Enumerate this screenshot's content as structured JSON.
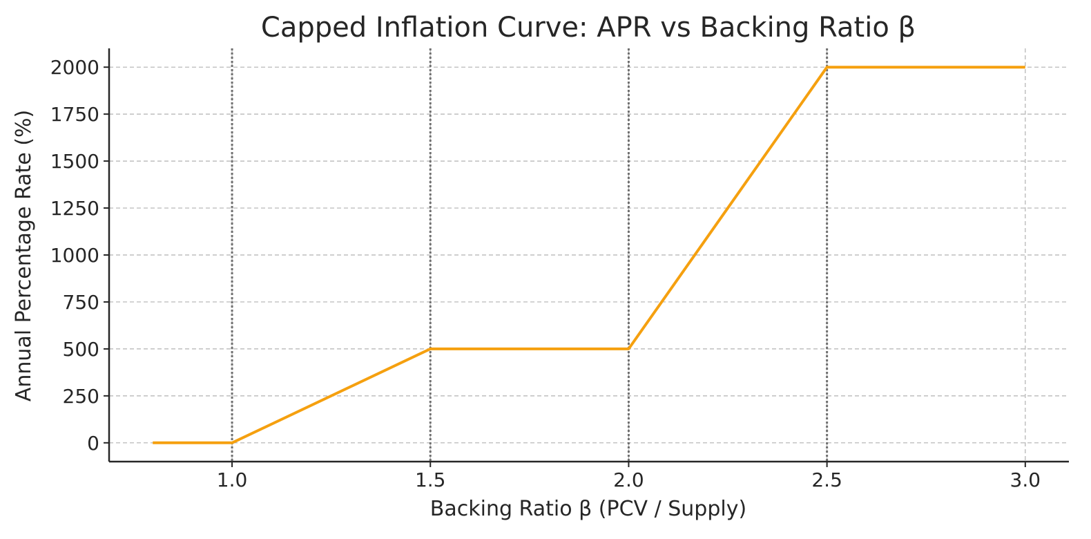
{
  "chart_data": {
    "type": "line",
    "title": "Capped Inflation Curve: APR vs Backing Ratio β",
    "xlabel": "Backing Ratio β (PCV / Supply)",
    "ylabel": "Annual Percentage Rate (%)",
    "xlim": [
      0.69,
      3.11
    ],
    "ylim": [
      -100,
      2100
    ],
    "x_ticks": [
      1.0,
      1.5,
      2.0,
      2.5,
      3.0
    ],
    "x_tick_labels": [
      "1.0",
      "1.5",
      "2.0",
      "2.5",
      "3.0"
    ],
    "y_ticks": [
      0,
      250,
      500,
      750,
      1000,
      1250,
      1500,
      1750,
      2000
    ],
    "y_tick_labels": [
      "0",
      "250",
      "500",
      "750",
      "1000",
      "1250",
      "1500",
      "1750",
      "2000"
    ],
    "breakpoints": [
      1.0,
      1.5,
      2.0,
      2.5
    ],
    "grid": true,
    "series": [
      {
        "color": "#f5a00f",
        "x": [
          0.8,
          1.0,
          1.5,
          2.0,
          2.5,
          3.0
        ],
        "y": [
          0,
          0,
          500,
          500,
          2000,
          2000
        ]
      }
    ]
  }
}
